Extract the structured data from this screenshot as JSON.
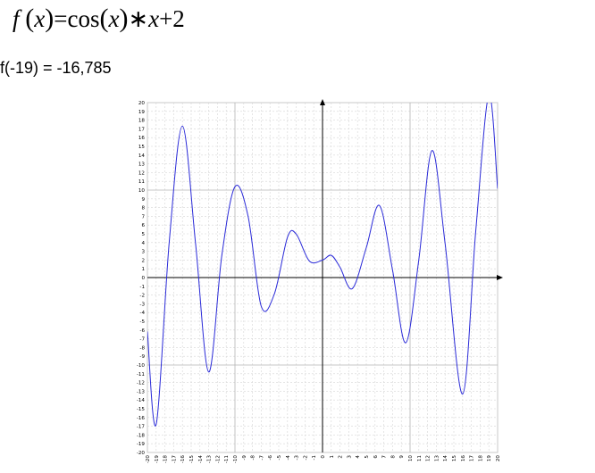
{
  "formula": {
    "f": "f",
    "lparen": "(",
    "x1": "x",
    "rparen": ")",
    "eq": "=",
    "cos": "cos",
    "lparen2": "(",
    "x2": "x",
    "rparen2": ")",
    "times": "∗",
    "x3": "x",
    "plus": "+2"
  },
  "evaluation": "f(-19) = -16,785",
  "chart_data": {
    "type": "line",
    "title": "",
    "xlabel": "",
    "ylabel": "",
    "xlim": [
      -20,
      20
    ],
    "ylim": [
      -20,
      20
    ],
    "x_ticks": [
      -20,
      -19,
      -18,
      -17,
      -16,
      -15,
      -14,
      -13,
      -12,
      -11,
      -10,
      -9,
      -8,
      -7,
      -6,
      -5,
      -4,
      -3,
      -2,
      -1,
      0,
      1,
      2,
      3,
      4,
      5,
      6,
      7,
      8,
      9,
      10,
      11,
      12,
      13,
      14,
      15,
      16,
      17,
      18,
      19,
      20
    ],
    "y_ticks": [
      -20,
      -19,
      -18,
      -17,
      -16,
      -15,
      -14,
      -13,
      -12,
      -11,
      -10,
      -9,
      -8,
      -7,
      -6,
      -5,
      -4,
      -3,
      -2,
      -1,
      0,
      1,
      2,
      3,
      4,
      5,
      6,
      7,
      8,
      9,
      10,
      11,
      12,
      13,
      14,
      15,
      16,
      17,
      18,
      19,
      20
    ],
    "grid": true,
    "series": [
      {
        "expression": "cos(x)*x+2",
        "color": "#2a2ad8",
        "points": [
          {
            "x": -20,
            "y": -6.16
          },
          {
            "x": -19,
            "y": -16.79
          },
          {
            "x": -17.5,
            "y": 4.16
          },
          {
            "x": -16,
            "y": 17.32
          },
          {
            "x": -14.5,
            "y": 3.88
          },
          {
            "x": -13,
            "y": -10.8
          },
          {
            "x": -11.5,
            "y": 2.53
          },
          {
            "x": -10,
            "y": 10.39
          },
          {
            "x": -8.5,
            "y": 7.0
          },
          {
            "x": -7,
            "y": -3.28
          },
          {
            "x": -5.5,
            "y": -1.88
          },
          {
            "x": -4,
            "y": 4.61
          },
          {
            "x": -3,
            "y": 4.97
          },
          {
            "x": -1.5,
            "y": 1.89
          },
          {
            "x": 0,
            "y": 2.0
          },
          {
            "x": 1,
            "y": 2.54
          },
          {
            "x": 2,
            "y": 1.17
          },
          {
            "x": 3.4,
            "y": -1.27
          },
          {
            "x": 5,
            "y": 3.42
          },
          {
            "x": 6.5,
            "y": 8.24
          },
          {
            "x": 8,
            "y": 0.84
          },
          {
            "x": 9.5,
            "y": -7.46
          },
          {
            "x": 11,
            "y": 2.05
          },
          {
            "x": 12.5,
            "y": 14.52
          },
          {
            "x": 14,
            "y": 3.91
          },
          {
            "x": 16,
            "y": -13.32
          },
          {
            "x": 17.5,
            "y": 5.3
          },
          {
            "x": 19,
            "y": 20.9
          },
          {
            "x": 20,
            "y": 10.16
          }
        ]
      }
    ]
  }
}
